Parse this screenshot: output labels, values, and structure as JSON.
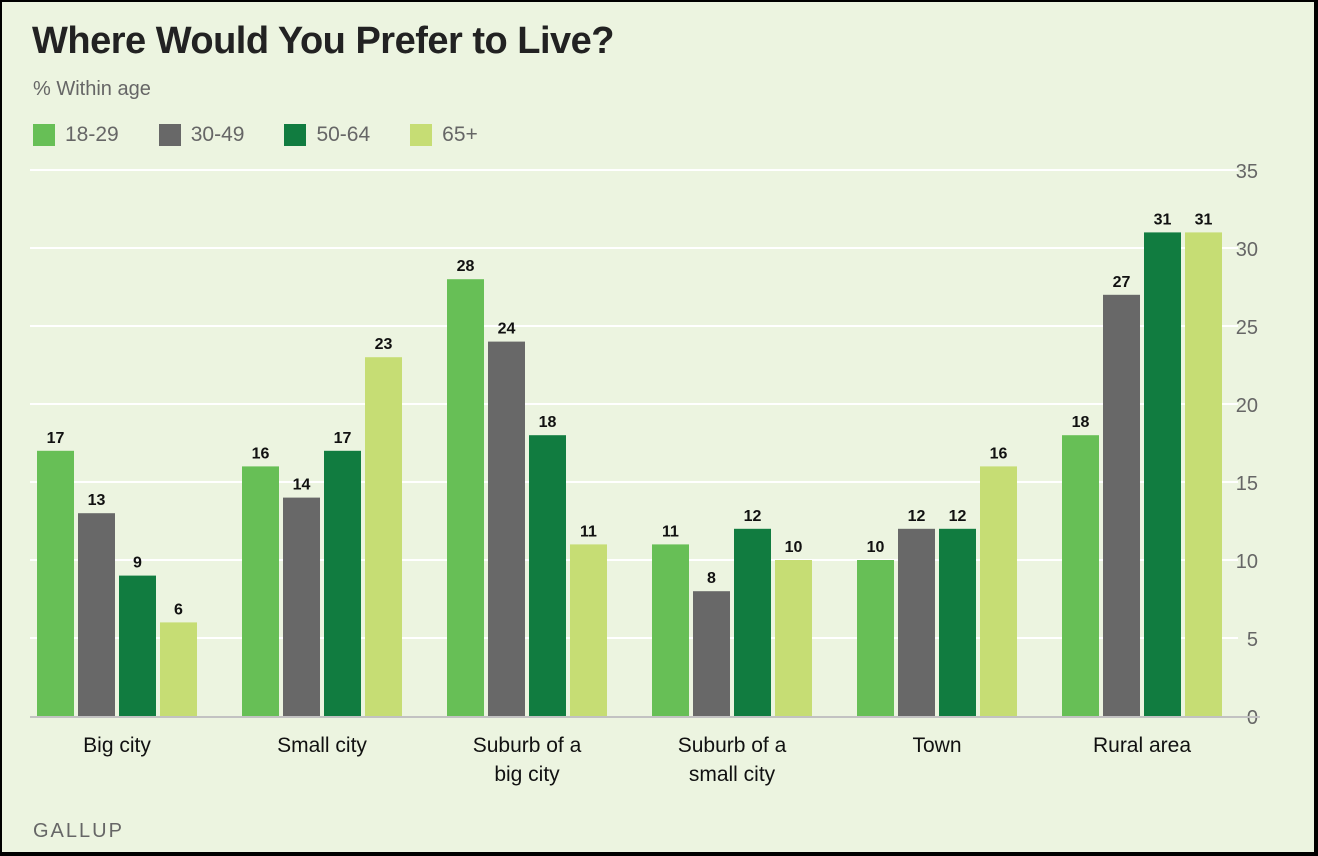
{
  "chart_data": {
    "type": "bar",
    "title": "Where Would You Prefer to Live?",
    "subtitle": "% Within age",
    "xlabel": "",
    "ylabel": "",
    "ylim": [
      0,
      35
    ],
    "yticks": [
      0,
      5,
      10,
      15,
      20,
      25,
      30,
      35
    ],
    "y_axis_position": "right",
    "grid": true,
    "legend_position": "top-left",
    "categories": [
      [
        "Big city"
      ],
      [
        "Small city"
      ],
      [
        "Suburb of a",
        "big city"
      ],
      [
        "Suburb of a",
        "small city"
      ],
      [
        "Town"
      ],
      [
        "Rural area"
      ]
    ],
    "series": [
      {
        "name": "18-29",
        "color": "#67bf56",
        "values": [
          17,
          16,
          28,
          11,
          10,
          18
        ]
      },
      {
        "name": "30-49",
        "color": "#686868",
        "values": [
          13,
          14,
          24,
          8,
          12,
          27
        ]
      },
      {
        "name": "50-64",
        "color": "#117c40",
        "values": [
          9,
          17,
          18,
          12,
          12,
          31
        ]
      },
      {
        "name": "65+",
        "color": "#c6dd74",
        "values": [
          6,
          23,
          11,
          10,
          16,
          31
        ]
      }
    ],
    "source": "GALLUP"
  }
}
